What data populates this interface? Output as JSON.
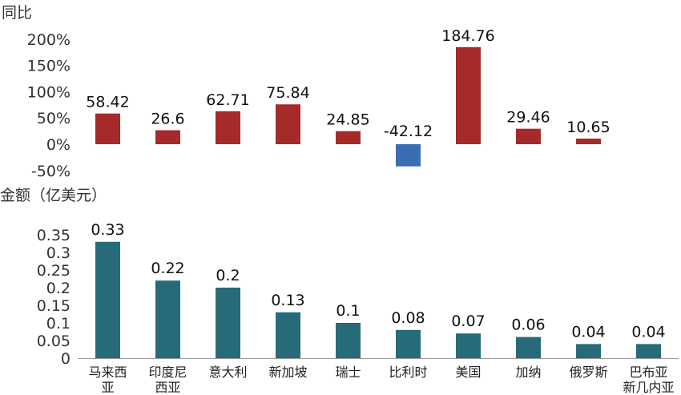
{
  "chart_data": [
    {
      "type": "bar",
      "ylabel": "同比",
      "categories": [
        "马来西亚",
        "印度尼西亚",
        "意大利",
        "新加坡",
        "瑞士",
        "比利时",
        "美国",
        "加纳",
        "俄罗斯",
        "巴布亚新几内亚"
      ],
      "values": [
        58.42,
        26.6,
        62.71,
        75.84,
        24.85,
        -42.12,
        184.76,
        29.46,
        10.65,
        null
      ],
      "value_labels": [
        "58.42",
        "26.6",
        "62.71",
        "75.84",
        "24.85",
        "-42.12",
        "184.76",
        "29.46",
        "10.65",
        ""
      ],
      "yticks": [
        "200%",
        "150%",
        "100%",
        "50%",
        "0%",
        "-50%"
      ],
      "ylim": [
        -50,
        200
      ],
      "colors": {
        "positive": "#a52a2a",
        "negative": "#3b6db3"
      },
      "grid": false,
      "legend": "none"
    },
    {
      "type": "bar",
      "ylabel": "金额（亿美元）",
      "categories": [
        "马来西亚",
        "印度尼西亚",
        "意大利",
        "新加坡",
        "瑞士",
        "比利时",
        "美国",
        "加纳",
        "俄罗斯",
        "巴布亚新几内亚"
      ],
      "category_labels": [
        [
          "马来西",
          "亚"
        ],
        [
          "印度尼",
          "西亚"
        ],
        [
          "意大利"
        ],
        [
          "新加坡"
        ],
        [
          "瑞士"
        ],
        [
          "比利时"
        ],
        [
          "美国"
        ],
        [
          "加纳"
        ],
        [
          "俄罗斯"
        ],
        [
          "巴布亚",
          "新几内亚"
        ]
      ],
      "values": [
        0.33,
        0.22,
        0.2,
        0.13,
        0.1,
        0.08,
        0.07,
        0.06,
        0.04,
        0.04
      ],
      "value_labels": [
        "0.33",
        "0.22",
        "0.2",
        "0.13",
        "0.1",
        "0.08",
        "0.07",
        "0.06",
        "0.04",
        "0.04"
      ],
      "yticks": [
        "0.35",
        "0.3",
        "0.25",
        "0.2",
        "0.15",
        "0.1",
        "0.05",
        "0"
      ],
      "ylim": [
        0,
        0.35
      ],
      "colors": {
        "bar": "#276b7a"
      },
      "grid": false,
      "legend": "none"
    }
  ]
}
